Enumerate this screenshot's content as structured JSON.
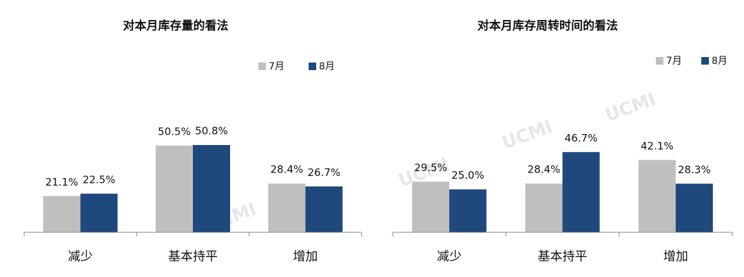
{
  "chart_data": [
    {
      "type": "bar",
      "title": "对本月库存量的看法",
      "watermark": "UCMI",
      "categories": [
        "减少",
        "基本持平",
        "增加"
      ],
      "series": [
        {
          "name": "7月",
          "color": "#bfbfbf",
          "values": [
            21.1,
            50.5,
            28.4
          ],
          "value_labels": [
            "21.1%",
            "50.5%",
            "28.4%"
          ]
        },
        {
          "name": "8月",
          "color": "#1f497d",
          "values": [
            22.5,
            50.8,
            26.7
          ],
          "value_labels": [
            "22.5%",
            "50.8%",
            "26.7%"
          ]
        }
      ]
    },
    {
      "type": "bar",
      "title": "对本月库存周转时间的看法",
      "watermark": "UCMI",
      "categories": [
        "减少",
        "基本持平",
        "增加"
      ],
      "series": [
        {
          "name": "7月",
          "color": "#bfbfbf",
          "values": [
            29.5,
            28.4,
            42.1
          ],
          "value_labels": [
            "29.5%",
            "28.4%",
            "42.1%"
          ]
        },
        {
          "name": "8月",
          "color": "#1f497d",
          "values": [
            25.0,
            46.7,
            28.3
          ],
          "value_labels": [
            "25.0%",
            "46.7%",
            "28.3%"
          ]
        }
      ]
    }
  ]
}
